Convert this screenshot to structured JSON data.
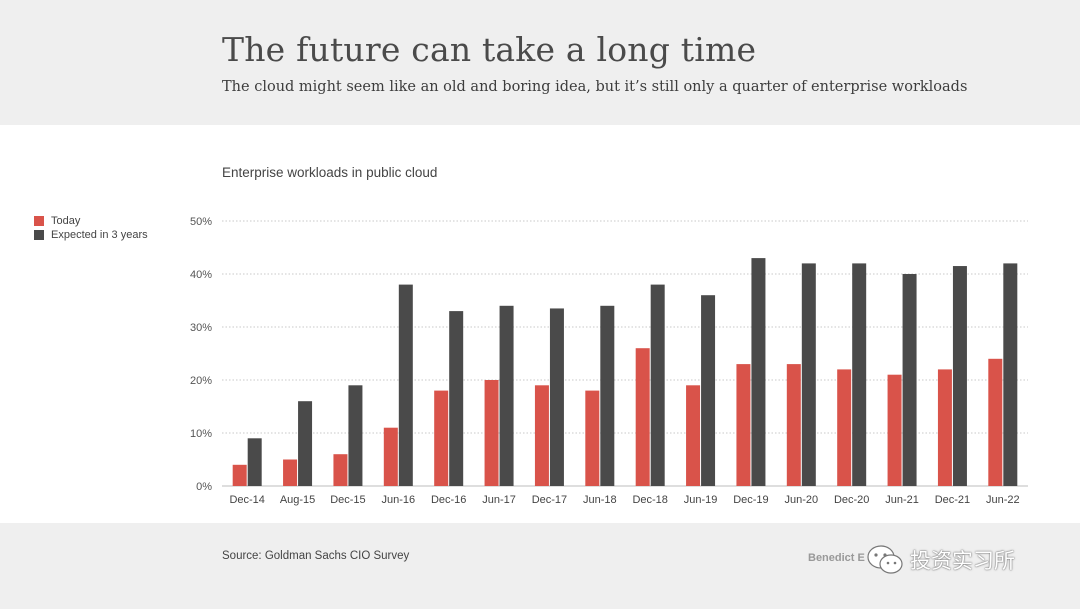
{
  "header": {
    "title": "The future can take a long time",
    "subtitle": "The cloud might seem like an old and boring idea, but it’s still only a quarter of enterprise workloads"
  },
  "footer": {
    "source": "Source: Goldman Sachs CIO Survey",
    "credit": "Benedict E",
    "watermark_text": "投资实习所",
    "watermark_icon": "wechat-icon"
  },
  "colors": {
    "today": "#d9534a",
    "expected": "#4a4a4a",
    "grid": "#c8c8c8",
    "header_bg": "#efefef"
  },
  "chart_data": {
    "type": "bar",
    "title": "Enterprise workloads in public cloud",
    "xlabel": "",
    "ylabel": "",
    "ylim": [
      0,
      50
    ],
    "yticks": [
      "0%",
      "10%",
      "20%",
      "30%",
      "40%",
      "50%"
    ],
    "legend_position": "left",
    "grid": true,
    "categories": [
      "Dec-14",
      "Aug-15",
      "Dec-15",
      "Jun-16",
      "Dec-16",
      "Jun-17",
      "Dec-17",
      "Jun-18",
      "Dec-18",
      "Jun-19",
      "Dec-19",
      "Jun-20",
      "Dec-20",
      "Jun-21",
      "Dec-21",
      "Jun-22"
    ],
    "series": [
      {
        "name": "Today",
        "values": [
          4,
          5,
          6,
          11,
          18,
          20,
          19,
          18,
          26,
          19,
          23,
          23,
          22,
          21,
          22,
          24
        ]
      },
      {
        "name": "Expected in 3 years",
        "values": [
          9,
          16,
          19,
          38,
          33,
          34,
          33.5,
          34,
          38,
          36,
          43,
          42,
          42,
          40,
          41.5,
          42
        ]
      }
    ]
  }
}
